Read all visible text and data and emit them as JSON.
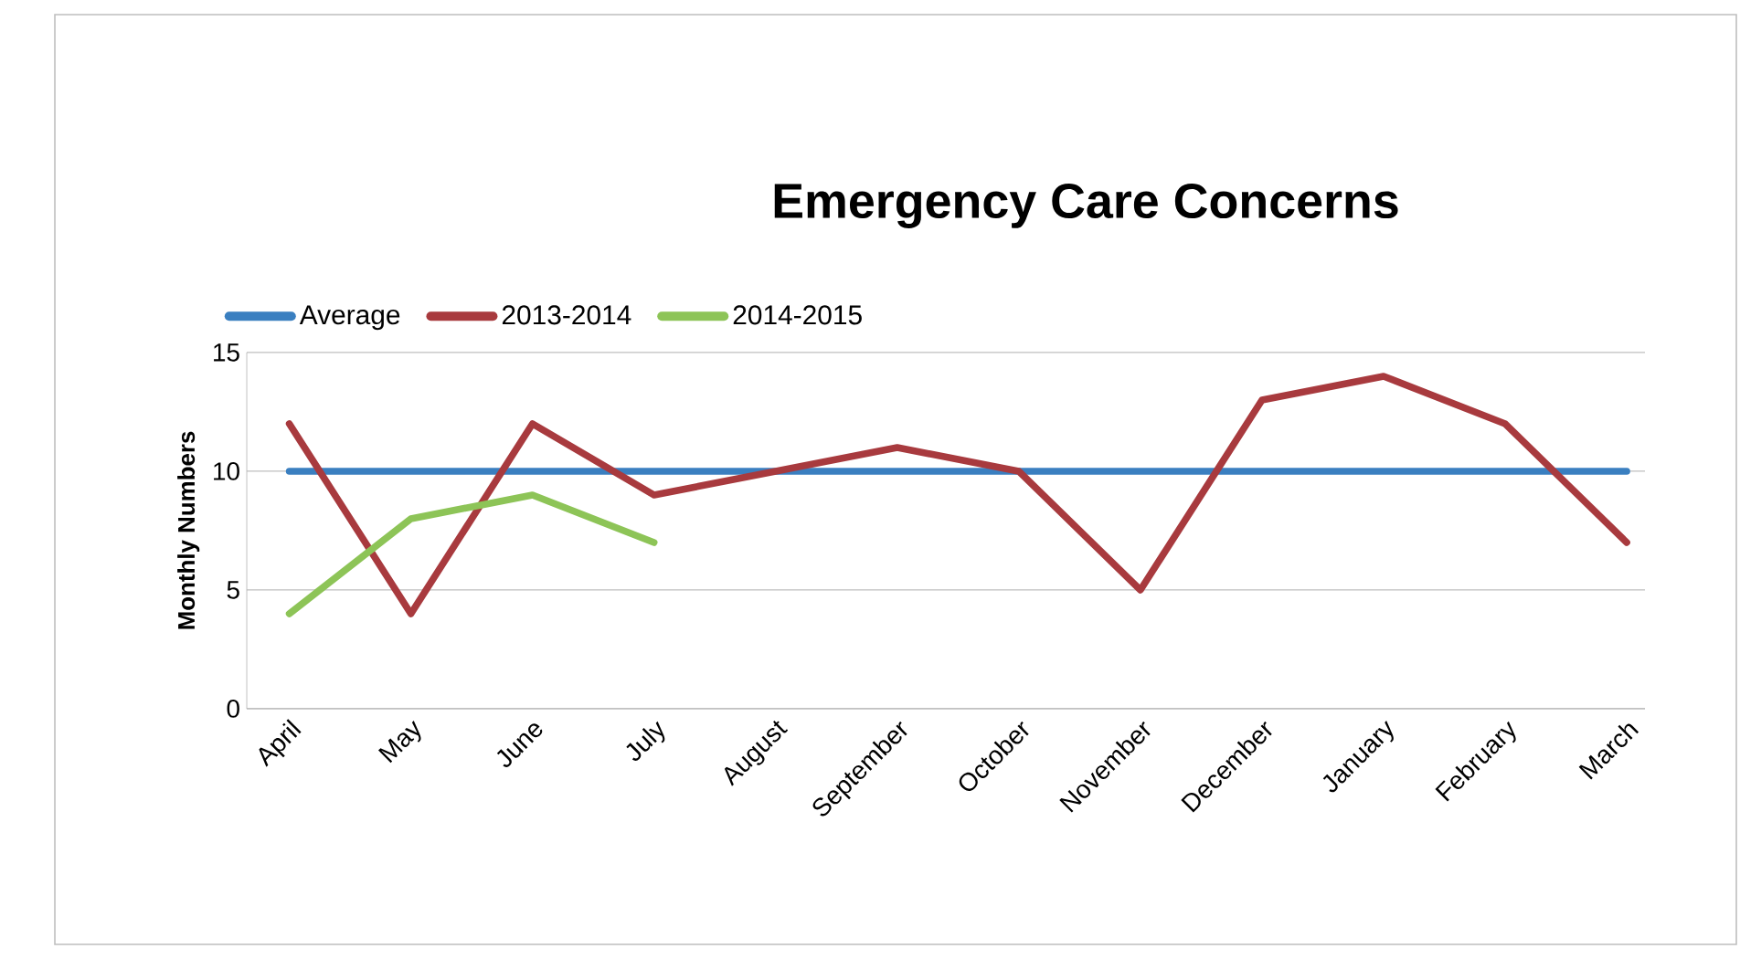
{
  "chart_data": {
    "type": "line",
    "title": "Emergency Care Concerns",
    "ylabel": "Monthly Numbers",
    "categories": [
      "April",
      "May",
      "June",
      "July",
      "August",
      "September",
      "October",
      "November",
      "December",
      "January",
      "February",
      "March"
    ],
    "series": [
      {
        "name": "Average",
        "color": "#3a7fc0",
        "values": [
          10,
          10,
          10,
          10,
          10,
          10,
          10,
          10,
          10,
          10,
          10,
          10
        ]
      },
      {
        "name": "2013-2014",
        "color": "#a83a3e",
        "values": [
          12,
          4,
          12,
          9,
          10,
          11,
          10,
          5,
          13,
          14,
          12,
          7
        ]
      },
      {
        "name": "2014-2015",
        "color": "#8dc457",
        "values": [
          4,
          8,
          9,
          7,
          null,
          null,
          null,
          null,
          null,
          null,
          null,
          null
        ]
      }
    ],
    "ylim": [
      0,
      15
    ],
    "yticks": [
      0,
      5,
      10,
      15
    ],
    "grid": "y",
    "legend": "top left",
    "marker": "none",
    "line_style": "solid"
  }
}
